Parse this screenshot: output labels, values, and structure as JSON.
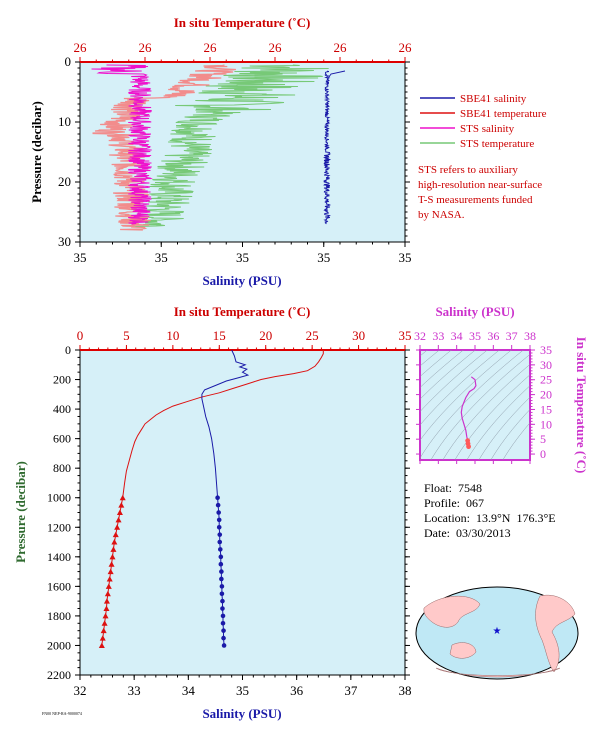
{
  "chart_data": [
    {
      "type": "line",
      "top_axis_title": "In situ Temperature (˚C)",
      "top_ticks": [
        "26",
        "26",
        "26",
        "26",
        "26",
        "26"
      ],
      "bottom_axis_title": "Salinity (PSU)",
      "bottom_ticks": [
        "35",
        "35",
        "35",
        "35",
        "35"
      ],
      "ylabel": "Pressure (decibar)",
      "y_ticks": [
        "0",
        "10",
        "20",
        "30"
      ],
      "ylim": [
        0,
        30
      ],
      "legend": {
        "placement": "right",
        "entries": [
          {
            "label": "SBE41 salinity",
            "color": "#1a1aa8"
          },
          {
            "label": "SBE41 temperature",
            "color": "#dd1111"
          },
          {
            "label": "STS salinity",
            "color": "#ee11cc"
          },
          {
            "label": "STS temperature",
            "color": "#77c977"
          }
        ]
      },
      "note": [
        "STS refers to auxiliary",
        "high-resolution near-surface",
        "T-S measurements funded",
        "by NASA."
      ]
    },
    {
      "type": "line",
      "top_axis_title": "In situ Temperature (˚C)",
      "top_ticks": [
        0,
        5,
        10,
        15,
        20,
        25,
        30,
        35
      ],
      "xlim_temperature": [
        0,
        35
      ],
      "bottom_axis_title": "Salinity (PSU)",
      "bottom_ticks": [
        32,
        33,
        34,
        35,
        36,
        37,
        38
      ],
      "xlim_salinity": [
        32,
        38
      ],
      "ylabel": "Pressure (decibar)",
      "y_ticks": [
        0,
        200,
        400,
        600,
        800,
        1000,
        1200,
        1400,
        1600,
        1800,
        2000,
        2200
      ],
      "ylim": [
        2200,
        0
      ],
      "series": [
        {
          "name": "SBE41 temperature",
          "color": "#dd1111",
          "marker": "triangle",
          "points": [
            [
              26.2,
              0
            ],
            [
              26.2,
              25
            ],
            [
              26,
              50
            ],
            [
              25.7,
              80
            ],
            [
              25.3,
              110
            ],
            [
              24.5,
              140
            ],
            [
              23,
              160
            ],
            [
              21,
              180
            ],
            [
              19.5,
              200
            ],
            [
              18,
              230
            ],
            [
              16.5,
              260
            ],
            [
              15,
              290
            ],
            [
              13,
              320
            ],
            [
              11.5,
              350
            ],
            [
              10,
              380
            ],
            [
              9,
              410
            ],
            [
              8.2,
              440
            ],
            [
              7.6,
              470
            ],
            [
              7,
              500
            ],
            [
              6.6,
              540
            ],
            [
              6.2,
              580
            ],
            [
              5.9,
              620
            ],
            [
              5.6,
              680
            ],
            [
              5.3,
              750
            ],
            [
              5,
              820
            ],
            [
              4.8,
              900
            ],
            [
              4.6,
              1000
            ],
            [
              4.45,
              1050
            ],
            [
              4.3,
              1100
            ],
            [
              4.15,
              1150
            ],
            [
              4.0,
              1200
            ],
            [
              3.85,
              1250
            ],
            [
              3.7,
              1300
            ],
            [
              3.6,
              1350
            ],
            [
              3.5,
              1400
            ],
            [
              3.4,
              1450
            ],
            [
              3.3,
              1500
            ],
            [
              3.2,
              1550
            ],
            [
              3.1,
              1600
            ],
            [
              3.0,
              1650
            ],
            [
              2.9,
              1700
            ],
            [
              2.85,
              1750
            ],
            [
              2.75,
              1800
            ],
            [
              2.65,
              1850
            ],
            [
              2.55,
              1900
            ],
            [
              2.45,
              1950
            ],
            [
              2.35,
              2000
            ]
          ]
        },
        {
          "name": "SBE41 salinity",
          "color": "#1a1aa8",
          "marker": "circle",
          "points": [
            [
              34.8,
              0
            ],
            [
              34.85,
              40
            ],
            [
              34.88,
              80
            ],
            [
              35.05,
              100
            ],
            [
              34.95,
              115
            ],
            [
              35.08,
              130
            ],
            [
              35.0,
              150
            ],
            [
              35.1,
              170
            ],
            [
              34.9,
              190
            ],
            [
              34.7,
              210
            ],
            [
              34.5,
              240
            ],
            [
              34.3,
              270
            ],
            [
              34.25,
              300
            ],
            [
              34.25,
              330
            ],
            [
              34.28,
              380
            ],
            [
              34.32,
              450
            ],
            [
              34.38,
              520
            ],
            [
              34.43,
              600
            ],
            [
              34.47,
              700
            ],
            [
              34.5,
              800
            ],
            [
              34.52,
              900
            ],
            [
              34.54,
              1000
            ],
            [
              34.55,
              1050
            ],
            [
              34.56,
              1100
            ],
            [
              34.57,
              1150
            ],
            [
              34.57,
              1200
            ],
            [
              34.58,
              1250
            ],
            [
              34.58,
              1300
            ],
            [
              34.59,
              1350
            ],
            [
              34.6,
              1400
            ],
            [
              34.6,
              1450
            ],
            [
              34.61,
              1500
            ],
            [
              34.61,
              1550
            ],
            [
              34.62,
              1600
            ],
            [
              34.62,
              1650
            ],
            [
              34.63,
              1700
            ],
            [
              34.63,
              1750
            ],
            [
              34.64,
              1800
            ],
            [
              34.64,
              1850
            ],
            [
              34.65,
              1900
            ],
            [
              34.65,
              1950
            ],
            [
              34.66,
              2000
            ]
          ]
        }
      ],
      "marker_from_pressure": 1000
    },
    {
      "type": "scatter",
      "top_axis_title": "Salinity (PSU)",
      "top_ticks": [
        32,
        33,
        34,
        35,
        36,
        37,
        38
      ],
      "xlim": [
        32,
        38
      ],
      "ylabel": "In situ Temperature (˚C)",
      "y_ticks": [
        0,
        5,
        10,
        15,
        20,
        25,
        30,
        35
      ],
      "ylim": [
        -2,
        35
      ],
      "series": [
        {
          "name": "T-S",
          "color": "#cc33cc",
          "points": [
            [
              34.8,
              26
            ],
            [
              35.0,
              25
            ],
            [
              35.05,
              23
            ],
            [
              34.95,
              22
            ],
            [
              34.7,
              21
            ],
            [
              34.5,
              19
            ],
            [
              34.3,
              16
            ],
            [
              34.25,
              14
            ],
            [
              34.3,
              12
            ],
            [
              34.4,
              10
            ],
            [
              34.5,
              8
            ],
            [
              34.55,
              6
            ],
            [
              34.6,
              4.5
            ],
            [
              34.62,
              3.5
            ],
            [
              34.65,
              2.5
            ]
          ]
        }
      ],
      "highlight_color": "#ff5a5a"
    }
  ],
  "info": {
    "float": "Float:  7548",
    "profile": "Profile:  067",
    "location": "Location:  13.9°N  176.3°E",
    "date": "Date:  03/30/2013"
  },
  "map": {
    "marker": "★",
    "marker_color": "#1111cc",
    "land_color": "#ffc9c9",
    "ocean_color": "#bfe8f5"
  },
  "credit": "FN00 NEP-RA-9000074"
}
